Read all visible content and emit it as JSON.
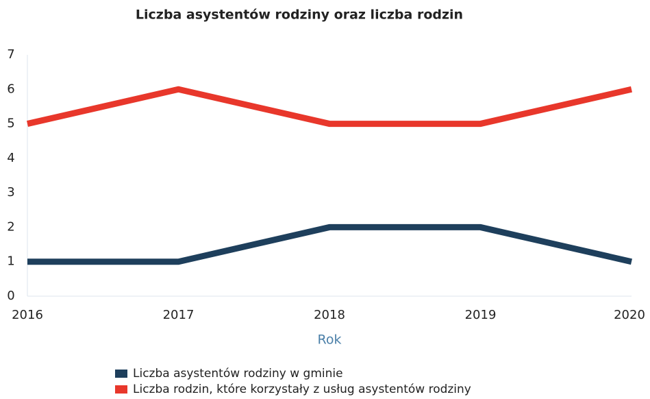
{
  "chart_data": {
    "type": "line",
    "title": "Liczba asystentów rodziny oraz liczba rodzin",
    "x_label": "Rok",
    "categories": [
      "2016",
      "2017",
      "2018",
      "2019",
      "2020"
    ],
    "series": [
      {
        "name": "Liczba asystentów rodziny w gminie",
        "color": "#1e3f5c",
        "values": [
          1,
          1,
          2,
          2,
          1
        ]
      },
      {
        "name": "Liczba rodzin, które korzystały z usług asystentów rodziny",
        "color": "#e8372b",
        "values": [
          5,
          6,
          5,
          5,
          6
        ]
      }
    ],
    "ylim": [
      0,
      7
    ],
    "yticks": [
      0,
      1,
      2,
      3,
      4,
      5,
      6,
      7
    ],
    "grid": false
  }
}
